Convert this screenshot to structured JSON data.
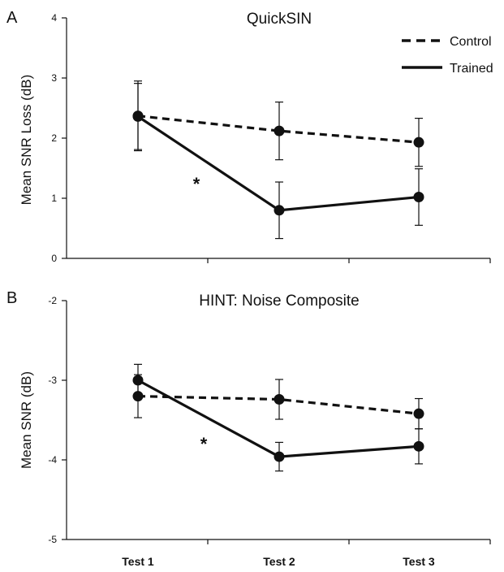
{
  "chart_data": [
    {
      "type": "line",
      "panel_label": "A",
      "title": "QuickSIN",
      "ylabel": "Mean SNR Loss (dB)",
      "xlabel": "",
      "categories": [
        "Test 1",
        "Test 2",
        "Test 3"
      ],
      "show_x_tick_labels": false,
      "ylim": [
        0,
        4
      ],
      "yticks": [
        "0",
        "1",
        "2",
        "3",
        "4"
      ],
      "grid": false,
      "legend": "top-right",
      "legend_labels": [
        "Control",
        "Trained"
      ],
      "annotation": "*",
      "series": [
        {
          "name": "Control",
          "style": "dashed",
          "values": [
            2.37,
            2.12,
            1.93
          ],
          "error": [
            0.58,
            0.48,
            0.4
          ]
        },
        {
          "name": "Trained",
          "style": "solid",
          "values": [
            2.36,
            0.8,
            1.02
          ],
          "error": [
            0.55,
            0.47,
            0.47
          ]
        }
      ]
    },
    {
      "type": "line",
      "panel_label": "B",
      "title": "HINT: Noise Composite",
      "ylabel": "Mean SNR (dB)",
      "xlabel": "",
      "categories": [
        "Test 1",
        "Test 2",
        "Test 3"
      ],
      "show_x_tick_labels": true,
      "ylim": [
        -5,
        -2
      ],
      "yticks": [
        "-5",
        "-4",
        "-3",
        "-2"
      ],
      "grid": false,
      "legend": "none",
      "annotation": "*",
      "series": [
        {
          "name": "Control",
          "style": "dashed",
          "values": [
            -3.2,
            -3.24,
            -3.42
          ],
          "error": [
            0.27,
            0.25,
            0.19
          ]
        },
        {
          "name": "Trained",
          "style": "solid",
          "values": [
            -3.0,
            -3.96,
            -3.83
          ],
          "error": [
            0.2,
            0.18,
            0.22
          ]
        }
      ]
    }
  ]
}
